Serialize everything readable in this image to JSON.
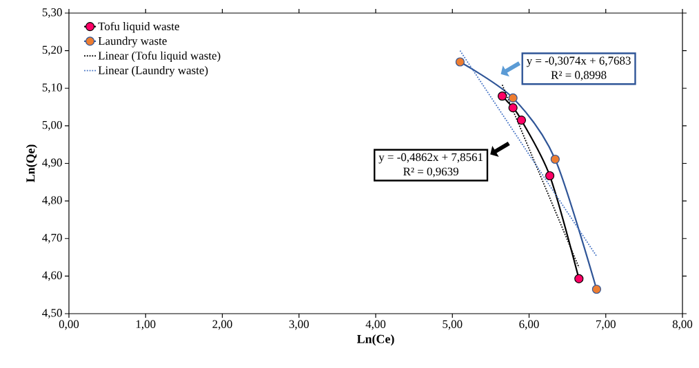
{
  "chart_data": {
    "type": "line",
    "xlabel": "Ln(Ce)",
    "ylabel": "Ln(Qe)",
    "xlim": [
      0,
      8
    ],
    "ylim": [
      4.5,
      5.3
    ],
    "xticks": [
      {
        "value": 0,
        "label": "0,00"
      },
      {
        "value": 1,
        "label": "1,00"
      },
      {
        "value": 2,
        "label": "2,00"
      },
      {
        "value": 3,
        "label": "3,00"
      },
      {
        "value": 4,
        "label": "4,00"
      },
      {
        "value": 5,
        "label": "5,00"
      },
      {
        "value": 6,
        "label": "6,00"
      },
      {
        "value": 7,
        "label": "7,00"
      },
      {
        "value": 8,
        "label": "8,00"
      }
    ],
    "yticks": [
      {
        "value": 4.5,
        "label": "4,50"
      },
      {
        "value": 4.6,
        "label": "4,60"
      },
      {
        "value": 4.7,
        "label": "4,70"
      },
      {
        "value": 4.8,
        "label": "4,80"
      },
      {
        "value": 4.9,
        "label": "4,90"
      },
      {
        "value": 5.0,
        "label": "5,00"
      },
      {
        "value": 5.1,
        "label": "5,10"
      },
      {
        "value": 5.2,
        "label": "5,20"
      },
      {
        "value": 5.3,
        "label": "5,30"
      }
    ],
    "legend": "top left",
    "grid": false,
    "marker": "circle",
    "series": [
      {
        "name": "Tofu liquid waste",
        "color": "#000000",
        "colors": [
          "#ff0066",
          "#ff0066",
          "#ff0066",
          "#ff0066",
          "#ff0066"
        ],
        "x": [
          5.65,
          5.79,
          5.9,
          6.27,
          6.65
        ],
        "values": [
          5.079,
          5.048,
          5.015,
          4.867,
          4.593
        ]
      },
      {
        "name": "Laundry waste",
        "color": "#2f5597",
        "colors": [
          "#ed7d31",
          "#ed7d31",
          "#ed7d31",
          "#ed7d31"
        ],
        "x": [
          5.1,
          5.79,
          6.34,
          6.88
        ],
        "values": [
          5.17,
          5.074,
          4.911,
          4.565
        ]
      },
      {
        "name": "Linear (Tofu liquid waste)",
        "color": "#000000",
        "marker": "none",
        "line_style": "dotted",
        "x": [
          5.65,
          6.65
        ],
        "values": [
          5.109,
          4.623
        ]
      },
      {
        "name": "Linear (Laundry waste)",
        "color": "#4472c4",
        "marker": "none",
        "line_style": "dotted",
        "x": [
          5.1,
          6.88
        ],
        "values": [
          5.2,
          4.653
        ]
      }
    ],
    "annotations": [
      "y = -0,3074x + 6,7683",
      "R² = 0,8998",
      "y = -0,4862x + 7,8561",
      "R² = 0,9639"
    ]
  }
}
